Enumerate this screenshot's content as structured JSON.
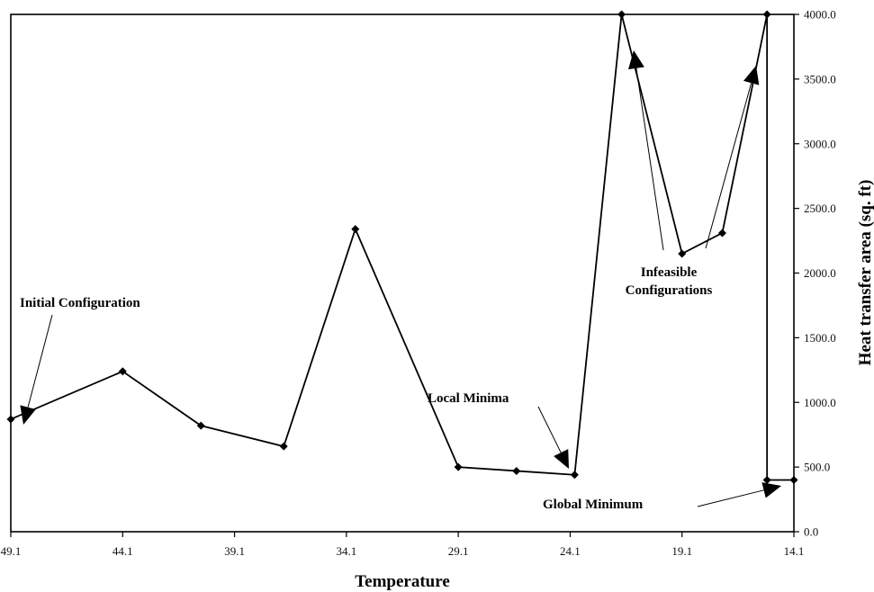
{
  "chart_data": {
    "type": "line",
    "xlabel": "Temperature",
    "ylabel": "Heat transfer area (sq. ft)",
    "x_reversed": true,
    "xlim": [
      49.1,
      14.1
    ],
    "ylim": [
      0,
      4000
    ],
    "x_ticks": [
      "49.1",
      "44.1",
      "39.1",
      "34.1",
      "29.1",
      "24.1",
      "19.1",
      "14.1"
    ],
    "y_ticks": [
      "0.0",
      "500.0",
      "1000.0",
      "1500.0",
      "2000.0",
      "2500.0",
      "3000.0",
      "3500.0",
      "4000.0"
    ],
    "grid": false,
    "legend": "none",
    "series": [
      {
        "x": [
          49.1,
          44.1,
          40.6,
          36.9,
          33.7,
          29.1,
          26.5,
          23.9,
          21.8,
          19.1,
          17.3,
          15.3,
          15.3,
          14.1
        ],
        "y": [
          870,
          1240,
          820,
          660,
          2340,
          500,
          470,
          440,
          4000,
          2150,
          2310,
          4000,
          400,
          400
        ]
      }
    ],
    "annotations": [
      {
        "label": "Initial Configuration"
      },
      {
        "label": "Local Minima"
      },
      {
        "label": "Infeasible",
        "label2": "Configurations"
      },
      {
        "label": "Global Minimum"
      }
    ],
    "colors": {
      "line": "#000000",
      "marker": "#000000",
      "axis": "#000000"
    }
  }
}
